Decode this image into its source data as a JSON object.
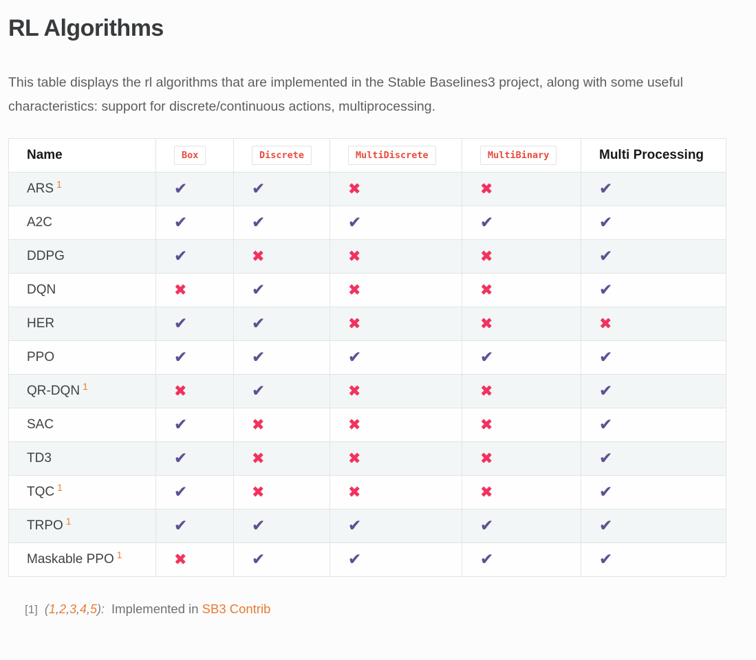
{
  "page": {
    "title": "RL Algorithms",
    "intro": "This table displays the rl algorithms that are implemented in the Stable Baselines3 project, along with some useful characteristics: support for discrete/continuous actions, multiprocessing."
  },
  "icons": {
    "check_glyph": "✔",
    "cross_glyph": "✖"
  },
  "colors": {
    "check_purple": "#5d5092",
    "cross_pink": "#f1325f",
    "code_red": "#e74c3c",
    "link_orange": "#e87a33",
    "sup_orange": "#ee7b38",
    "row_stripe": "#f3f6f6",
    "table_border": "#e1e4e5"
  },
  "table": {
    "columns": [
      {
        "label": "Name",
        "style": "text"
      },
      {
        "label": "Box",
        "style": "code"
      },
      {
        "label": "Discrete",
        "style": "code"
      },
      {
        "label": "MultiDiscrete",
        "style": "code"
      },
      {
        "label": "MultiBinary",
        "style": "code"
      },
      {
        "label": "Multi Processing",
        "style": "text"
      }
    ],
    "rows": [
      {
        "name": "ARS",
        "footnote_ref": "1",
        "marks": [
          true,
          true,
          false,
          false,
          true
        ]
      },
      {
        "name": "A2C",
        "footnote_ref": "",
        "marks": [
          true,
          true,
          true,
          true,
          true
        ]
      },
      {
        "name": "DDPG",
        "footnote_ref": "",
        "marks": [
          true,
          false,
          false,
          false,
          true
        ]
      },
      {
        "name": "DQN",
        "footnote_ref": "",
        "marks": [
          false,
          true,
          false,
          false,
          true
        ]
      },
      {
        "name": "HER",
        "footnote_ref": "",
        "marks": [
          true,
          true,
          false,
          false,
          false
        ]
      },
      {
        "name": "PPO",
        "footnote_ref": "",
        "marks": [
          true,
          true,
          true,
          true,
          true
        ]
      },
      {
        "name": "QR-DQN",
        "footnote_ref": "1",
        "marks": [
          false,
          true,
          false,
          false,
          true
        ]
      },
      {
        "name": "SAC",
        "footnote_ref": "",
        "marks": [
          true,
          false,
          false,
          false,
          true
        ]
      },
      {
        "name": "TD3",
        "footnote_ref": "",
        "marks": [
          true,
          false,
          false,
          false,
          true
        ]
      },
      {
        "name": "TQC",
        "footnote_ref": "1",
        "marks": [
          true,
          false,
          false,
          false,
          true
        ]
      },
      {
        "name": "TRPO",
        "footnote_ref": "1",
        "marks": [
          true,
          true,
          true,
          true,
          true
        ]
      },
      {
        "name": "Maskable PPO",
        "footnote_ref": "1",
        "marks": [
          false,
          true,
          true,
          true,
          true
        ]
      }
    ]
  },
  "footnote": {
    "marker": "[1]",
    "paren_open": "(",
    "paren_close": "):",
    "separator": ",",
    "backrefs": [
      "1",
      "2",
      "3",
      "4",
      "5"
    ],
    "text": "Implemented in",
    "link_label": "SB3 Contrib"
  }
}
